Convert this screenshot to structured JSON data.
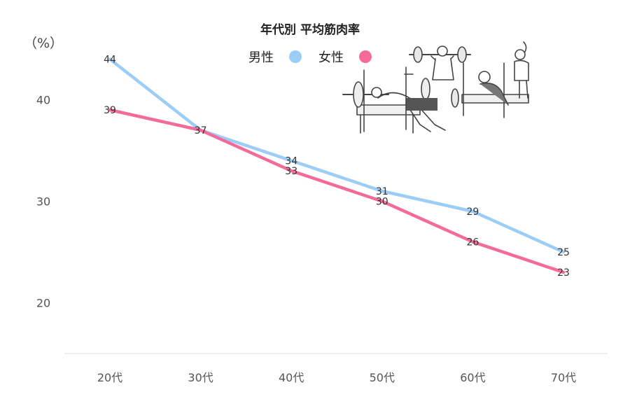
{
  "chart_data": {
    "type": "line",
    "title": "年代別 平均筋肉率",
    "ylabel": "（%）",
    "xlabel": "",
    "categories": [
      "20代",
      "30代",
      "40代",
      "50代",
      "60代",
      "70代"
    ],
    "yticks": [
      20,
      30,
      40
    ],
    "ylim": [
      15,
      45
    ],
    "grid": false,
    "legend_position": "top-center",
    "series": [
      {
        "name": "男性",
        "color": "#9ccdf7",
        "values": [
          44,
          37,
          34,
          31,
          29,
          25
        ]
      },
      {
        "name": "女性",
        "color": "#f46b9a",
        "values": [
          39,
          37,
          33,
          30,
          26,
          23
        ]
      }
    ]
  },
  "illustration": {
    "icon": "gym-workout-illustration"
  }
}
